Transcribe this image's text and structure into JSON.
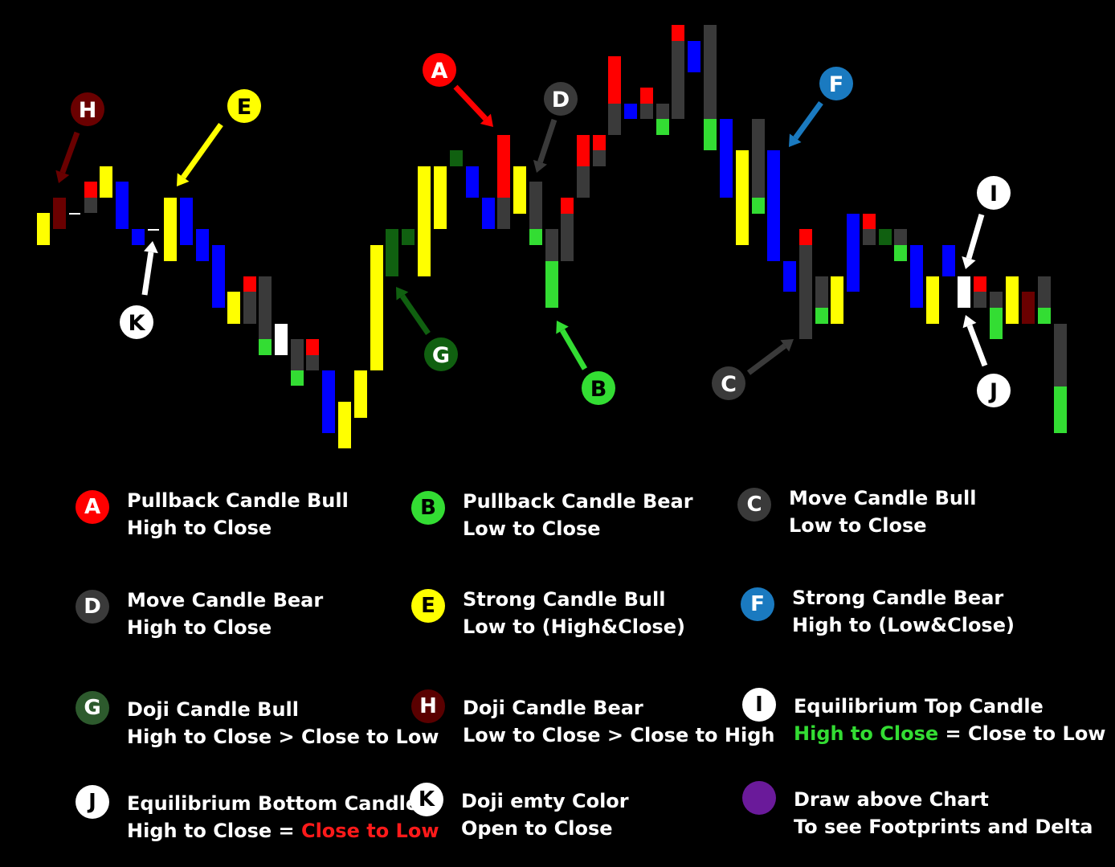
{
  "colors": {
    "red": "#ff0000",
    "green": "#33dd33",
    "darkgreen": "#106010",
    "yellow": "#ffff00",
    "blue": "#0000ff",
    "gray": "#3a3a3a",
    "maroon": "#6a0000",
    "white": "#ffffff",
    "lightblue": "#1a7ac0",
    "purple": "#6a1a9a"
  },
  "candles": [
    {
      "c": "yellow",
      "top": 265,
      "bottom": 305
    },
    {
      "c": "maroon",
      "top": 246,
      "bottom": 285
    },
    {
      "c": "white",
      "top": 265,
      "bottom": 267
    },
    {
      "c": "red",
      "top": 226,
      "bottom": 246
    },
    {
      "c": "gray",
      "top": 246,
      "bottom": 265
    },
    {
      "c": "yellow",
      "top": 207,
      "bottom": 246
    },
    {
      "c": "blue",
      "top": 226,
      "bottom": 285
    },
    {
      "c": "blue",
      "top": 285,
      "bottom": 305
    },
    {
      "c": "white",
      "top": 285,
      "bottom": 287
    },
    {
      "c": "yellow",
      "top": 246,
      "bottom": 325
    },
    {
      "c": "blue",
      "top": 246,
      "bottom": 305
    },
    {
      "c": "blue",
      "top": 285,
      "bottom": 325
    },
    {
      "c": "blue",
      "top": 305,
      "bottom": 383
    },
    {
      "c": "yellow",
      "top": 363,
      "bottom": 403
    },
    {
      "c": "red",
      "top": 344,
      "bottom": 363
    },
    {
      "c": "gray",
      "top": 363,
      "bottom": 403
    },
    {
      "c": "gray",
      "top": 344,
      "bottom": 422
    },
    {
      "c": "green",
      "top": 422,
      "bottom": 442
    },
    {
      "c": "white",
      "top": 403,
      "bottom": 442
    },
    {
      "c": "gray",
      "top": 422,
      "bottom": 461
    },
    {
      "c": "green",
      "top": 461,
      "bottom": 480
    },
    {
      "c": "red",
      "top": 422,
      "bottom": 442
    },
    {
      "c": "gray",
      "top": 442,
      "bottom": 461
    },
    {
      "c": "blue",
      "top": 461,
      "bottom": 539
    },
    {
      "c": "yellow",
      "top": 500,
      "bottom": 558
    },
    {
      "c": "yellow",
      "top": 461,
      "bottom": 520
    },
    {
      "c": "yellow",
      "top": 305,
      "bottom": 461
    },
    {
      "c": "darkgreen",
      "top": 285,
      "bottom": 344
    },
    {
      "c": "darkgreen",
      "top": 285,
      "bottom": 305
    },
    {
      "c": "yellow",
      "top": 207,
      "bottom": 344
    },
    {
      "c": "yellow",
      "top": 207,
      "bottom": 285
    },
    {
      "c": "darkgreen",
      "top": 187,
      "bottom": 207
    },
    {
      "c": "blue",
      "top": 207,
      "bottom": 246
    },
    {
      "c": "blue",
      "top": 246,
      "bottom": 285
    },
    {
      "c": "red",
      "top": 168,
      "bottom": 246
    },
    {
      "c": "gray",
      "top": 246,
      "bottom": 285
    },
    {
      "c": "yellow",
      "top": 207,
      "bottom": 266
    },
    {
      "c": "gray",
      "top": 226,
      "bottom": 285
    },
    {
      "c": "green",
      "top": 285,
      "bottom": 305
    },
    {
      "c": "gray",
      "top": 285,
      "bottom": 325
    },
    {
      "c": "green",
      "top": 325,
      "bottom": 383
    },
    {
      "c": "red",
      "top": 246,
      "bottom": 266
    },
    {
      "c": "gray",
      "top": 266,
      "bottom": 325
    },
    {
      "c": "red",
      "top": 168,
      "bottom": 207
    },
    {
      "c": "gray",
      "top": 207,
      "bottom": 246
    },
    {
      "c": "red",
      "top": 168,
      "bottom": 187
    },
    {
      "c": "gray",
      "top": 187,
      "bottom": 207
    },
    {
      "c": "red",
      "top": 70,
      "bottom": 129
    },
    {
      "c": "gray",
      "top": 129,
      "bottom": 168
    },
    {
      "c": "blue",
      "top": 129,
      "bottom": 148
    },
    {
      "c": "red",
      "top": 109,
      "bottom": 129
    },
    {
      "c": "gray",
      "top": 129,
      "bottom": 148
    },
    {
      "c": "gray",
      "top": 129,
      "bottom": 148
    },
    {
      "c": "green",
      "top": 148,
      "bottom": 168
    },
    {
      "c": "red",
      "top": 31,
      "bottom": 51
    },
    {
      "c": "gray",
      "top": 51,
      "bottom": 148
    },
    {
      "c": "blue",
      "top": 51,
      "bottom": 90
    },
    {
      "c": "gray",
      "top": 31,
      "bottom": 148
    },
    {
      "c": "green",
      "top": 148,
      "bottom": 187
    },
    {
      "c": "blue",
      "top": 148,
      "bottom": 246
    },
    {
      "c": "yellow",
      "top": 187,
      "bottom": 305
    },
    {
      "c": "gray",
      "top": 148,
      "bottom": 246
    },
    {
      "c": "green",
      "top": 246,
      "bottom": 266
    },
    {
      "c": "blue",
      "top": 187,
      "bottom": 325
    },
    {
      "c": "blue",
      "top": 325,
      "bottom": 363
    },
    {
      "c": "red",
      "top": 285,
      "bottom": 305
    },
    {
      "c": "gray",
      "top": 305,
      "bottom": 422
    },
    {
      "c": "gray",
      "top": 344,
      "bottom": 383
    },
    {
      "c": "green",
      "top": 383,
      "bottom": 403
    },
    {
      "c": "yellow",
      "top": 344,
      "bottom": 403
    },
    {
      "c": "blue",
      "top": 266,
      "bottom": 363
    },
    {
      "c": "red",
      "top": 266,
      "bottom": 285
    },
    {
      "c": "gray",
      "top": 285,
      "bottom": 305
    },
    {
      "c": "darkgreen",
      "top": 285,
      "bottom": 305
    },
    {
      "c": "gray",
      "top": 285,
      "bottom": 305
    },
    {
      "c": "green",
      "top": 305,
      "bottom": 325
    },
    {
      "c": "blue",
      "top": 305,
      "bottom": 383
    },
    {
      "c": "yellow",
      "top": 344,
      "bottom": 403
    },
    {
      "c": "blue",
      "top": 305,
      "bottom": 344
    },
    {
      "c": "white",
      "top": 344,
      "bottom": 383
    },
    {
      "c": "red",
      "top": 344,
      "bottom": 363
    },
    {
      "c": "gray",
      "top": 363,
      "bottom": 383
    },
    {
      "c": "gray",
      "top": 363,
      "bottom": 383
    },
    {
      "c": "green",
      "top": 383,
      "bottom": 422
    },
    {
      "c": "yellow",
      "top": 344,
      "bottom": 403
    },
    {
      "c": "maroon",
      "top": 363,
      "bottom": 403
    },
    {
      "c": "gray",
      "top": 344,
      "bottom": 383
    },
    {
      "c": "green",
      "top": 383,
      "bottom": 403
    },
    {
      "c": "gray",
      "top": 403,
      "bottom": 481
    },
    {
      "c": "green",
      "top": 481,
      "bottom": 539
    }
  ],
  "annotations": [
    {
      "letter": "A",
      "bg": "red",
      "fg": "white",
      "arrow": "red"
    },
    {
      "letter": "B",
      "bg": "green",
      "fg": "black",
      "arrow": "green"
    },
    {
      "letter": "C",
      "bg": "gray",
      "fg": "white",
      "arrow": "gray"
    },
    {
      "letter": "D",
      "bg": "gray",
      "fg": "white",
      "arrow": "gray"
    },
    {
      "letter": "E",
      "bg": "yellow",
      "fg": "black",
      "arrow": "yellow"
    },
    {
      "letter": "F",
      "bg": "lightblue",
      "fg": "white",
      "arrow": "lightblue"
    },
    {
      "letter": "G",
      "bg": "darkgreen",
      "fg": "white",
      "arrow": "darkgreen"
    },
    {
      "letter": "H",
      "bg": "maroon",
      "fg": "white",
      "arrow": "maroon"
    },
    {
      "letter": "I",
      "bg": "white",
      "fg": "black",
      "arrow": "white"
    },
    {
      "letter": "J",
      "bg": "white",
      "fg": "black",
      "arrow": "white"
    },
    {
      "letter": "K",
      "bg": "white",
      "fg": "black",
      "arrow": "white"
    }
  ],
  "legend": {
    "A": {
      "badge": "A",
      "line1": "Pullback Candle Bull",
      "line2": "High to Close"
    },
    "B": {
      "badge": "B",
      "line1": "Pullback Candle Bear",
      "line2": "Low to Close"
    },
    "C": {
      "badge": "C",
      "line1": "Move Candle Bull",
      "line2": "Low to Close"
    },
    "D": {
      "badge": "D",
      "line1": "Move Candle Bear",
      "line2": "High to Close"
    },
    "E": {
      "badge": "E",
      "line1": "Strong Candle Bull",
      "line2": "Low to (High&Close)"
    },
    "F": {
      "badge": "F",
      "line1": "Strong Candle Bear",
      "line2": "High to (Low&Close)"
    },
    "G": {
      "badge": "G",
      "line1": "Doji Candle Bull",
      "line2": "High to Close > Close to Low"
    },
    "H": {
      "badge": "H",
      "line1": "Doji Candle Bear",
      "line2": "Low to Close > Close to High"
    },
    "I": {
      "badge": "I",
      "line1": "Equilibrium Top Candle",
      "line2a": "High to Close",
      "line2b": " = Close to Low"
    },
    "J": {
      "badge": "J",
      "line1": "Equilibrium Bottom Candle",
      "line2a": "High to Close = ",
      "line2b": "Close to Low"
    },
    "K": {
      "badge": "K",
      "line1": "Doji emty Color",
      "line2": "Open to Close"
    },
    "P": {
      "line1": "Draw above Chart",
      "line2": "To see Footprints and Delta"
    }
  }
}
